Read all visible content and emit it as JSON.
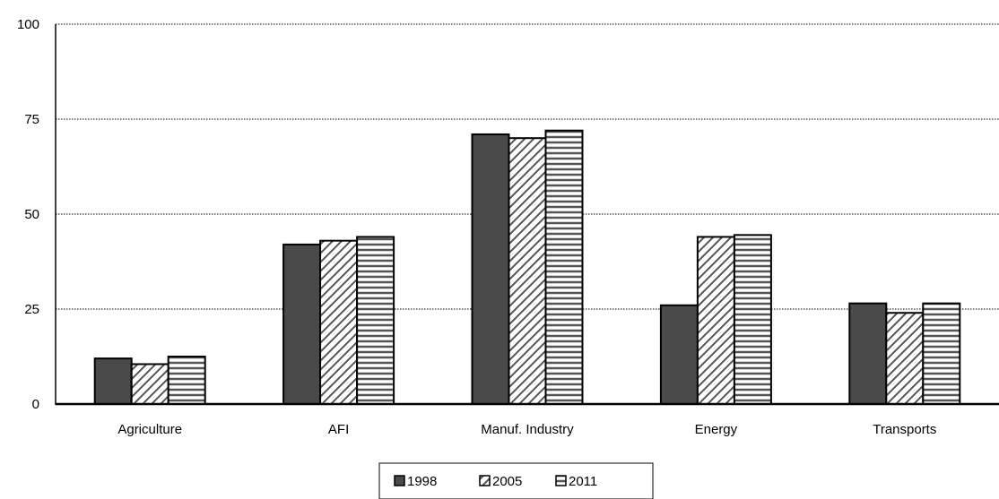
{
  "chart_data": {
    "type": "bar",
    "categories": [
      "Agriculture",
      "AFI",
      "Manuf. Industry",
      "Energy",
      "Transports"
    ],
    "series": [
      {
        "name": "1998",
        "values": [
          12,
          42,
          71,
          26,
          26.5
        ],
        "pattern": "solid",
        "color": "#4a4a4a"
      },
      {
        "name": "2005",
        "values": [
          10.5,
          43,
          70,
          44,
          24
        ],
        "pattern": "diagonal",
        "color": "#ffffff"
      },
      {
        "name": "2011",
        "values": [
          12.5,
          44,
          72,
          44.5,
          26.5
        ],
        "pattern": "horizontal",
        "color": "#ffffff"
      }
    ],
    "ylim": [
      0,
      100
    ],
    "yticks": [
      0,
      25,
      50,
      75,
      100
    ],
    "grid": true,
    "legend_position": "bottom-center",
    "title": "",
    "xlabel": "",
    "ylabel": ""
  }
}
